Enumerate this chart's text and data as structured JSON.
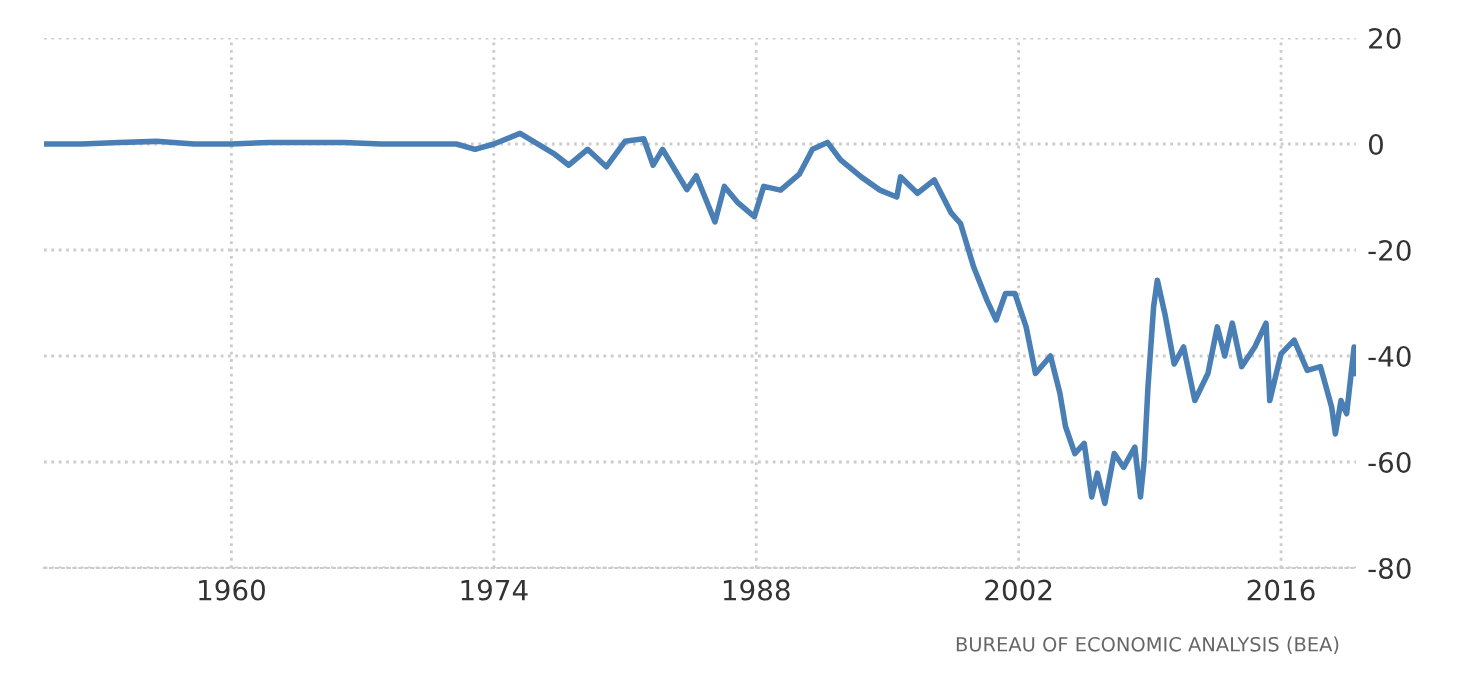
{
  "chart_data": {
    "type": "line",
    "x": [
      1950,
      1952,
      1954,
      1956,
      1958,
      1960,
      1962,
      1964,
      1966,
      1968,
      1970,
      1972,
      1973,
      1974,
      1975.4,
      1977.2,
      1978,
      1979,
      1980,
      1981,
      1982,
      1982.5,
      1983,
      1984.3,
      1984.8,
      1985.8,
      1986.3,
      1987,
      1987.9,
      1988.4,
      1989.3,
      1990.3,
      1991,
      1991.8,
      1992.5,
      1993.6,
      1994.6,
      1995.5,
      1995.7,
      1996.6,
      1997.5,
      1998.4,
      1998.9,
      1999.6,
      2000.3,
      2000.8,
      2001.3,
      2001.8,
      2002.4,
      2002.9,
      2003.7,
      2004.2,
      2004.5,
      2005,
      2005.5,
      2005.9,
      2006.2,
      2006.6,
      2007.1,
      2007.6,
      2008.2,
      2008.5,
      2008.7,
      2008.9,
      2009.2,
      2009.4,
      2009.8,
      2010.3,
      2010.8,
      2011.4,
      2012.1,
      2012.6,
      2013,
      2013.4,
      2013.9,
      2014.6,
      2015.2,
      2015.4,
      2016,
      2016.7,
      2017.4,
      2018.1,
      2018.7,
      2018.9,
      2019.2,
      2019.5,
      2019.9,
      2020
    ],
    "series": [
      {
        "color": "#4a7fb5",
        "values": [
          0,
          0,
          0.3,
          0.5,
          0,
          0,
          0.3,
          0.3,
          0.3,
          0,
          0,
          0,
          -1,
          0,
          2,
          -1.8,
          -4,
          -1,
          -4.3,
          0.5,
          1,
          -4,
          -1,
          -8.6,
          -6,
          -14.7,
          -8,
          -11,
          -13.7,
          -8,
          -8.7,
          -5.7,
          -1,
          0.3,
          -3,
          -6.2,
          -8.7,
          -10,
          -6.2,
          -9.3,
          -6.8,
          -13,
          -15,
          -23.2,
          -29.4,
          -33.2,
          -28.2,
          -28.2,
          -34.5,
          -43.3,
          -40,
          -47,
          -53.3,
          -58.4,
          -56.5,
          -66.6,
          -62.1,
          -67.8,
          -58.4,
          -61,
          -57.2,
          -66.6,
          -59.7,
          -45.9,
          -30.8,
          -25.7,
          -32,
          -41.5,
          -38.3,
          -48.4,
          -43.3,
          -34.5,
          -40,
          -33.8,
          -42,
          -38.3,
          -33.8,
          -48.4,
          -39.6,
          -37,
          -42.7,
          -42,
          -49.6,
          -54.7,
          -48.4,
          -50.9,
          -38.3,
          -43.3
        ]
      }
    ],
    "xlim": [
      1950,
      2020
    ],
    "xticks": [
      1960,
      1974,
      1988,
      2002,
      2016
    ],
    "ylim": [
      -80,
      20
    ],
    "yticks": [
      -80,
      -60,
      -40,
      -20,
      0,
      20
    ],
    "grid": true,
    "line_style": "solid",
    "marker": "none",
    "annotations": [
      "BUREAU OF ECONOMIC ANALYSIS (BEA)"
    ]
  }
}
